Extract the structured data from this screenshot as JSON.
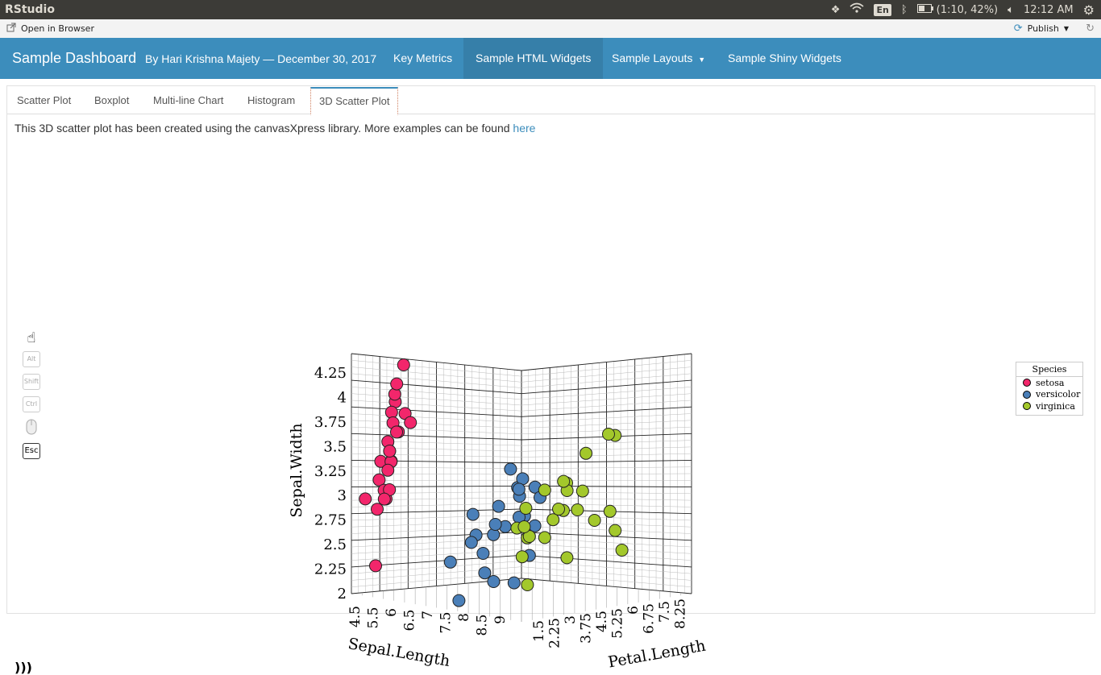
{
  "system_bar": {
    "app_name": "RStudio",
    "keyboard_lang": "En",
    "battery": "(1:10, 42%)",
    "clock": "12:12 AM"
  },
  "viewer": {
    "open_in_browser": "Open in Browser",
    "publish": "Publish"
  },
  "navbar": {
    "brand": "Sample Dashboard",
    "byline": "By Hari Krishna Majety — December 30, 2017",
    "items": [
      {
        "label": "Key Metrics"
      },
      {
        "label": "Sample HTML Widgets",
        "active": true
      },
      {
        "label": "Sample Layouts"
      },
      {
        "label": "Sample Shiny Widgets"
      }
    ]
  },
  "tabs": [
    {
      "label": "Scatter Plot"
    },
    {
      "label": "Boxplot"
    },
    {
      "label": "Multi-line Chart"
    },
    {
      "label": "Histogram"
    },
    {
      "label": "3D Scatter Plot",
      "active": true
    }
  ],
  "description": {
    "text": "This 3D scatter plot has been created using the canvasXpress library. More examples can be found ",
    "link": "here"
  },
  "toolbar_keys": [
    "Alt",
    "Shift",
    "Ctrl",
    "Esc"
  ],
  "colors": {
    "accent": "#3c8dbc",
    "setosa": "#f2266b",
    "versicolor": "#4a7fb8",
    "virginica": "#a3c82b"
  },
  "chart_data": {
    "type": "scatter",
    "xlabel": "Sepal.Length",
    "ylabel": "Sepal.Width",
    "zlabel": "Petal.Length",
    "y_ticks": [
      "2",
      "2.25",
      "2.5",
      "2.75",
      "3",
      "3.25",
      "3.5",
      "3.75",
      "4",
      "4.25"
    ],
    "x_ticks": [
      "4.5",
      "5.5",
      "6",
      "6.5",
      "7",
      "7.5",
      "8",
      "8.5",
      "9"
    ],
    "z_ticks": [
      "1.5",
      "2.25",
      "3",
      "3.75",
      "4.5",
      "5.25",
      "6",
      "6.75",
      "7.5",
      "8.25"
    ],
    "legend_title": "Species",
    "series": [
      {
        "name": "setosa",
        "points": [
          [
            5.1,
            3.5,
            1.4
          ],
          [
            4.9,
            3.0,
            1.4
          ],
          [
            4.7,
            3.2,
            1.3
          ],
          [
            4.6,
            3.1,
            1.5
          ],
          [
            5.0,
            3.6,
            1.4
          ],
          [
            5.4,
            3.9,
            1.7
          ],
          [
            4.6,
            3.4,
            1.4
          ],
          [
            5.0,
            3.4,
            1.5
          ],
          [
            4.4,
            2.9,
            1.4
          ],
          [
            4.9,
            3.1,
            1.5
          ],
          [
            5.4,
            3.7,
            1.5
          ],
          [
            4.8,
            3.4,
            1.6
          ],
          [
            4.3,
            3.0,
            1.1
          ],
          [
            5.8,
            4.0,
            1.2
          ],
          [
            5.7,
            4.4,
            1.5
          ],
          [
            5.4,
            3.9,
            1.3
          ],
          [
            5.1,
            3.5,
            1.4
          ],
          [
            5.7,
            3.8,
            1.7
          ],
          [
            5.1,
            3.8,
            1.5
          ],
          [
            5.2,
            4.1,
            1.5
          ],
          [
            5.5,
            4.2,
            1.4
          ],
          [
            4.5,
            2.3,
            1.3
          ],
          [
            5.0,
            3.3,
            1.4
          ],
          [
            5.3,
            3.7,
            1.5
          ],
          [
            4.8,
            3.0,
            1.4
          ]
        ]
      },
      {
        "name": "versicolor",
        "points": [
          [
            7.0,
            3.2,
            4.7
          ],
          [
            6.4,
            3.2,
            4.5
          ],
          [
            6.9,
            3.1,
            4.9
          ],
          [
            5.5,
            2.3,
            4.0
          ],
          [
            6.5,
            2.8,
            4.6
          ],
          [
            5.7,
            2.8,
            4.5
          ],
          [
            6.3,
            3.3,
            4.7
          ],
          [
            4.9,
            2.4,
            3.3
          ],
          [
            6.6,
            2.9,
            4.6
          ],
          [
            5.2,
            2.7,
            3.9
          ],
          [
            5.0,
            2.0,
            3.5
          ],
          [
            5.9,
            3.0,
            4.2
          ],
          [
            6.0,
            2.2,
            4.0
          ],
          [
            6.1,
            2.9,
            4.7
          ],
          [
            5.6,
            2.9,
            3.6
          ],
          [
            6.7,
            3.1,
            4.4
          ],
          [
            5.8,
            2.7,
            4.1
          ],
          [
            6.2,
            2.2,
            4.5
          ],
          [
            5.6,
            2.5,
            3.9
          ],
          [
            5.9,
            3.2,
            4.8
          ],
          [
            6.1,
            2.8,
            4.0
          ],
          [
            6.3,
            2.5,
            4.9
          ],
          [
            6.8,
            2.8,
            4.8
          ],
          [
            6.0,
            3.4,
            4.5
          ],
          [
            5.7,
            2.6,
            3.5
          ]
        ]
      },
      {
        "name": "virginica",
        "points": [
          [
            6.3,
            3.3,
            6.0
          ],
          [
            5.8,
            2.7,
            5.1
          ],
          [
            7.1,
            3.0,
            5.9
          ],
          [
            6.3,
            2.9,
            5.6
          ],
          [
            6.5,
            3.0,
            5.8
          ],
          [
            7.6,
            3.0,
            6.6
          ],
          [
            7.3,
            2.9,
            6.3
          ],
          [
            6.7,
            2.5,
            5.8
          ],
          [
            7.2,
            3.6,
            6.1
          ],
          [
            6.4,
            2.7,
            5.3
          ],
          [
            6.8,
            3.0,
            5.5
          ],
          [
            5.7,
            2.5,
            5.0
          ],
          [
            6.4,
            3.2,
            5.3
          ],
          [
            7.7,
            3.8,
            6.7
          ],
          [
            7.7,
            2.6,
            6.9
          ],
          [
            6.0,
            2.2,
            5.0
          ],
          [
            6.9,
            3.2,
            5.7
          ],
          [
            5.6,
            2.8,
            4.9
          ],
          [
            7.7,
            2.8,
            6.7
          ],
          [
            6.3,
            2.7,
            4.9
          ],
          [
            6.7,
            3.3,
            5.7
          ],
          [
            7.2,
            3.2,
            6.0
          ],
          [
            6.2,
            2.8,
            4.8
          ],
          [
            7.9,
            3.8,
            6.4
          ],
          [
            6.1,
            3.0,
            4.9
          ]
        ]
      }
    ]
  }
}
